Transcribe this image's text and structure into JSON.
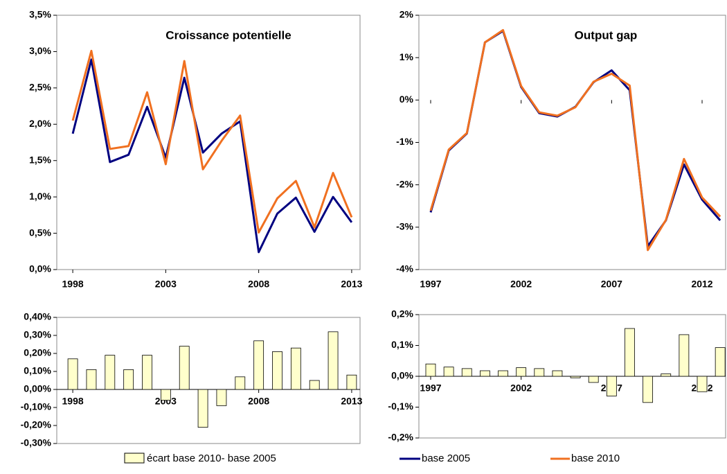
{
  "chart_data": [
    {
      "type": "line",
      "title": "Croissance potentielle",
      "x": [
        1998,
        1999,
        2000,
        2001,
        2002,
        2003,
        2004,
        2005,
        2006,
        2007,
        2008,
        2009,
        2010,
        2011,
        2012,
        2013
      ],
      "xlim": [
        1997.14,
        2013.45
      ],
      "xticks": [
        1998,
        2003,
        2008,
        2013
      ],
      "ylim": [
        0,
        3.5
      ],
      "yticks": [
        {
          "value": 0,
          "label": "0,0%"
        },
        {
          "value": 0.5,
          "label": "0,5%"
        },
        {
          "value": 1,
          "label": "1,0%"
        },
        {
          "value": 1.5,
          "label": "1,5%"
        },
        {
          "value": 2,
          "label": "2,0%"
        },
        {
          "value": 2.5,
          "label": "2,5%"
        },
        {
          "value": 3,
          "label": "3,0%"
        },
        {
          "value": 3.5,
          "label": "3,5%"
        }
      ],
      "series": [
        {
          "name": "base 2005",
          "color": "#000080",
          "values": [
            1.87,
            2.89,
            1.48,
            1.58,
            2.24,
            1.54,
            2.64,
            1.61,
            1.87,
            2.04,
            0.24,
            0.77,
            0.99,
            0.52,
            1.0,
            0.65
          ]
        },
        {
          "name": "base 2010",
          "color": "#f07020",
          "values": [
            2.05,
            3.01,
            1.66,
            1.7,
            2.44,
            1.45,
            2.87,
            1.38,
            1.77,
            2.12,
            0.51,
            0.98,
            1.22,
            0.58,
            1.33,
            0.72
          ]
        }
      ]
    },
    {
      "type": "line",
      "title": "Output gap",
      "x": [
        1997,
        1998,
        1999,
        2000,
        2001,
        2002,
        2003,
        2004,
        2005,
        2006,
        2007,
        2008,
        2009,
        2010,
        2011,
        2012,
        2013
      ],
      "xlim": [
        1996.35,
        2013.3
      ],
      "xticks": [
        1997,
        2002,
        2007,
        2012
      ],
      "ylim": [
        -4,
        2
      ],
      "yticks": [
        {
          "value": -4,
          "label": "-4%"
        },
        {
          "value": -3,
          "label": "-3%"
        },
        {
          "value": -2,
          "label": "-2%"
        },
        {
          "value": -1,
          "label": "-1%"
        },
        {
          "value": 0,
          "label": "0%"
        },
        {
          "value": 1,
          "label": "1%"
        },
        {
          "value": 2,
          "label": "2%"
        }
      ],
      "series": [
        {
          "color": "#000080",
          "values": [
            -2.65,
            -1.19,
            -0.79,
            1.36,
            1.63,
            0.31,
            -0.31,
            -0.39,
            -0.16,
            0.42,
            0.7,
            0.23,
            -3.45,
            -2.84,
            -1.52,
            -2.35,
            -2.84
          ]
        },
        {
          "color": "#f07020",
          "values": [
            -2.61,
            -1.17,
            -0.78,
            1.36,
            1.65,
            0.33,
            -0.29,
            -0.37,
            -0.17,
            0.43,
            0.62,
            0.34,
            -3.54,
            -2.83,
            -1.39,
            -2.3,
            -2.75
          ]
        }
      ]
    },
    {
      "type": "bar",
      "x": [
        1998,
        1999,
        2000,
        2001,
        2002,
        2003,
        2004,
        2005,
        2006,
        2007,
        2008,
        2009,
        2010,
        2011,
        2012,
        2013
      ],
      "xlim": [
        1997.14,
        2013.45
      ],
      "xticks": [
        1998,
        2003,
        2008,
        2013
      ],
      "ylim": [
        -0.3,
        0.4
      ],
      "yticks": [
        {
          "value": -0.3,
          "label": "-0,30%"
        },
        {
          "value": -0.2,
          "label": "-0,20%"
        },
        {
          "value": -0.1,
          "label": "-0,10%"
        },
        {
          "value": 0,
          "label": "0,00%"
        },
        {
          "value": 0.1,
          "label": "0,10%"
        },
        {
          "value": 0.2,
          "label": "0,20%"
        },
        {
          "value": 0.3,
          "label": "0,30%"
        },
        {
          "value": 0.4,
          "label": "0,40%"
        }
      ],
      "series": [
        {
          "name": "écart base 2010- base 2005",
          "color": "#ffffcc",
          "values": [
            0.17,
            0.11,
            0.19,
            0.11,
            0.19,
            -0.06,
            0.24,
            -0.21,
            -0.09,
            0.07,
            0.27,
            0.21,
            0.23,
            0.05,
            0.32,
            0.08
          ]
        }
      ]
    },
    {
      "type": "bar",
      "x": [
        1997,
        1998,
        1999,
        2000,
        2001,
        2002,
        2003,
        2004,
        2005,
        2006,
        2007,
        2008,
        2009,
        2010,
        2011,
        2012,
        2013
      ],
      "xlim": [
        1996.35,
        2013.3
      ],
      "xticks": [
        1997,
        2002,
        2007,
        2012
      ],
      "ylim": [
        -0.2,
        0.2
      ],
      "yticks": [
        {
          "value": -0.2,
          "label": "-0,2%"
        },
        {
          "value": -0.1,
          "label": "-0,1%"
        },
        {
          "value": 0,
          "label": "0,0%"
        },
        {
          "value": 0.1,
          "label": "0,1%"
        },
        {
          "value": 0.2,
          "label": "0,2%"
        }
      ],
      "series": [
        {
          "color": "#ffffcc",
          "values": [
            0.04,
            0.03,
            0.025,
            0.018,
            0.018,
            0.028,
            0.025,
            0.018,
            -0.005,
            -0.02,
            -0.064,
            0.155,
            -0.085,
            0.008,
            0.135,
            -0.05,
            0.093
          ]
        }
      ]
    }
  ]
}
